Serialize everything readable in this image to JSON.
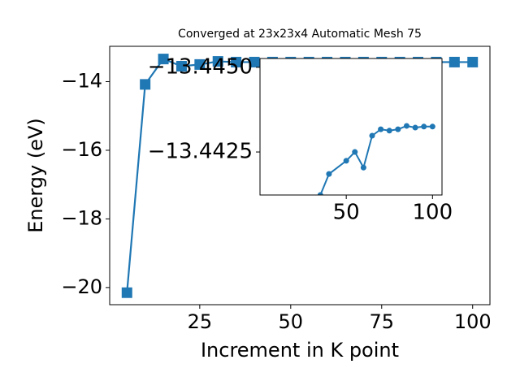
{
  "chart_data": [
    {
      "type": "line",
      "title": "Converged at 23x23x4 Automatic Mesh 75",
      "x_label": "Increment in K point",
      "y_label": "Energy (eV)",
      "x": [
        5,
        10,
        15,
        20,
        25,
        30,
        35,
        40,
        45,
        50,
        55,
        60,
        65,
        70,
        75,
        80,
        85,
        90,
        95,
        100
      ],
      "series": [
        {
          "color": "#1f77b4",
          "marker": "square",
          "values": [
            -20.15,
            -14.08,
            -13.34,
            -13.55,
            -13.5,
            -13.41,
            -13.43,
            -13.43,
            -13.43,
            -13.43,
            -13.43,
            -13.43,
            -13.43,
            -13.43,
            -13.43,
            -13.43,
            -13.43,
            -13.43,
            -13.43,
            -13.43
          ]
        }
      ],
      "xlim": [
        0.25,
        104.75
      ],
      "ylim": [
        -20.5,
        -12.97
      ],
      "xticks": [
        25,
        50,
        75,
        100
      ],
      "yticks": [
        {
          "value": -20,
          "label": "−20"
        },
        {
          "value": -18,
          "label": "−18"
        },
        {
          "value": -16,
          "label": "−16"
        },
        {
          "value": -14,
          "label": "−14"
        }
      ]
    },
    {
      "type": "line",
      "x": [
        35,
        40,
        50,
        55,
        60,
        65,
        70,
        75,
        80,
        85,
        90,
        95,
        100
      ],
      "series": [
        {
          "color": "#1f77b4",
          "marker": "circle",
          "values": [
            -13.44123,
            -13.44185,
            -13.44224,
            -13.4425,
            -13.44204,
            -13.44298,
            -13.44317,
            -13.44313,
            -13.44317,
            -13.44327,
            -13.44322,
            -13.44325,
            -13.44325
          ]
        }
      ],
      "xlim": [
        0,
        105.5
      ],
      "ylim": [
        -13.44123,
        -13.44526
      ],
      "xticks": [
        50,
        100
      ],
      "yticks": [
        {
          "value": -13.445,
          "label": "−13.4450"
        },
        {
          "value": -13.4425,
          "label": "−13.4425"
        }
      ]
    }
  ]
}
